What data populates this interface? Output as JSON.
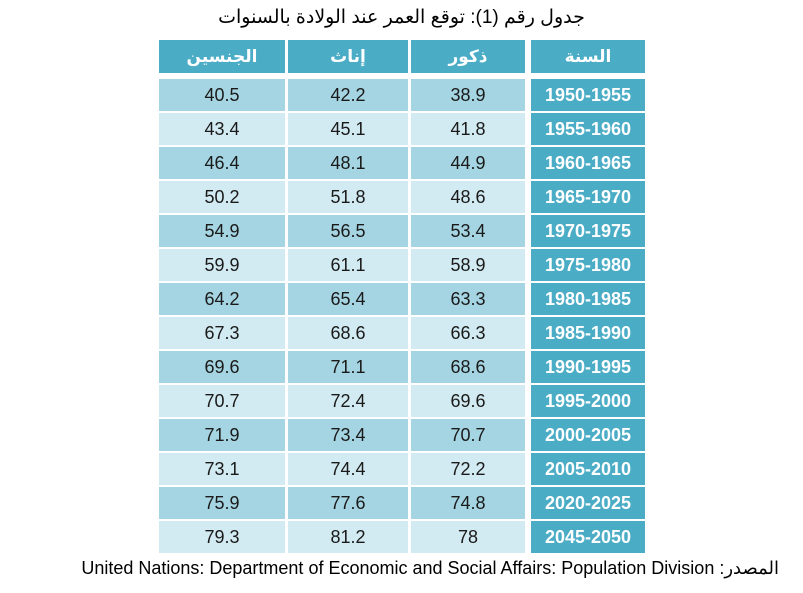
{
  "title": "جدول رقم (1): توقع العمر عند الولادة بالسنوات",
  "headers": {
    "year": "السنة",
    "male": "ذكور",
    "female": "إناث",
    "both": "الجنسين"
  },
  "rows": [
    {
      "year": "1950-1955",
      "male": "38.9",
      "female": "42.2",
      "both": "40.5"
    },
    {
      "year": "1955-1960",
      "male": "41.8",
      "female": "45.1",
      "both": "43.4"
    },
    {
      "year": "1960-1965",
      "male": "44.9",
      "female": "48.1",
      "both": "46.4"
    },
    {
      "year": "1965-1970",
      "male": "48.6",
      "female": "51.8",
      "both": "50.2"
    },
    {
      "year": "1970-1975",
      "male": "53.4",
      "female": "56.5",
      "both": "54.9"
    },
    {
      "year": "1975-1980",
      "male": "58.9",
      "female": "61.1",
      "both": "59.9"
    },
    {
      "year": "1980-1985",
      "male": "63.3",
      "female": "65.4",
      "both": "64.2"
    },
    {
      "year": "1985-1990",
      "male": "66.3",
      "female": "68.6",
      "both": "67.3"
    },
    {
      "year": "1990-1995",
      "male": "68.6",
      "female": "71.1",
      "both": "69.6"
    },
    {
      "year": "1995-2000",
      "male": "69.6",
      "female": "72.4",
      "both": "70.7"
    },
    {
      "year": "2000-2005",
      "male": "70.7",
      "female": "73.4",
      "both": "71.9"
    },
    {
      "year": "2005-2010",
      "male": "72.2",
      "female": "74.4",
      "both": "73.1"
    },
    {
      "year": "2020-2025",
      "male": "74.8",
      "female": "77.6",
      "both": "75.9"
    },
    {
      "year": "2045-2050",
      "male": "78",
      "female": "81.2",
      "both": "79.3"
    }
  ],
  "source": {
    "label": "المصدر:",
    "text": "United Nations: Department of Economic and Social Affairs: Population Division"
  }
}
